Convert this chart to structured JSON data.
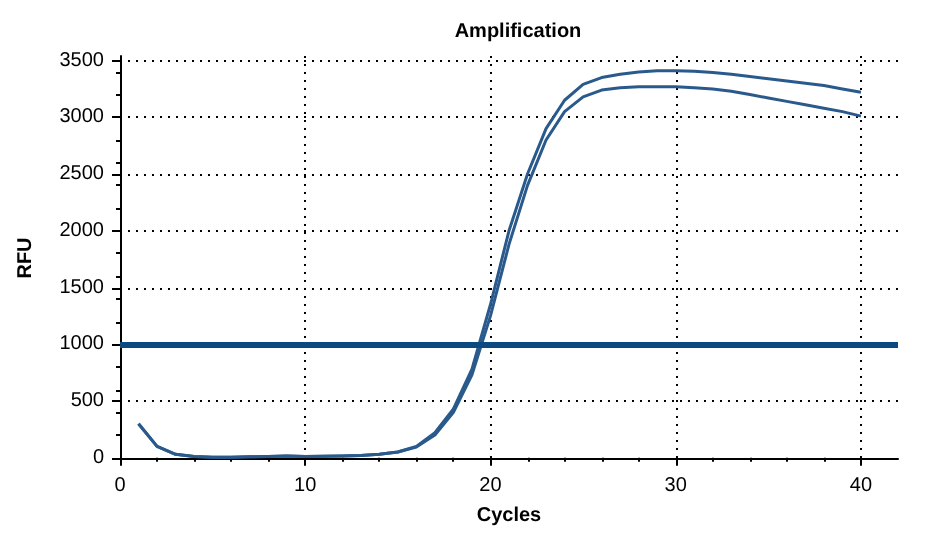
{
  "chart_data": {
    "type": "line",
    "title": "Amplification",
    "xlabel": "Cycles",
    "ylabel": "RFU",
    "x": [
      1,
      2,
      3,
      4,
      5,
      6,
      7,
      8,
      9,
      10,
      11,
      12,
      13,
      14,
      15,
      16,
      17,
      18,
      19,
      20,
      21,
      22,
      23,
      24,
      25,
      26,
      27,
      28,
      29,
      30,
      31,
      32,
      33,
      34,
      35,
      36,
      37,
      38,
      39,
      40
    ],
    "series": [
      {
        "color": "#2a5a8c",
        "values": [
          300,
          100,
          30,
          10,
          5,
          5,
          8,
          10,
          15,
          10,
          12,
          15,
          20,
          30,
          50,
          100,
          220,
          430,
          780,
          1350,
          2000,
          2500,
          2900,
          3150,
          3290,
          3350,
          3380,
          3400,
          3410,
          3410,
          3405,
          3395,
          3380,
          3360,
          3340,
          3320,
          3300,
          3280,
          3250,
          3220
        ]
      },
      {
        "color": "#2a5a8c",
        "values": [
          300,
          100,
          30,
          10,
          5,
          5,
          8,
          10,
          15,
          10,
          12,
          15,
          20,
          30,
          50,
          95,
          200,
          400,
          730,
          1250,
          1880,
          2400,
          2800,
          3050,
          3180,
          3240,
          3260,
          3270,
          3270,
          3270,
          3260,
          3250,
          3230,
          3200,
          3170,
          3140,
          3110,
          3080,
          3050,
          3010
        ]
      }
    ],
    "xlim": [
      0,
      42
    ],
    "xticks": [
      0,
      10,
      20,
      30,
      40
    ],
    "ylim": [
      -20,
      3540
    ],
    "yticks": [
      0,
      500,
      1000,
      1500,
      2000,
      2500,
      3000,
      3500
    ],
    "ref_lines": [
      {
        "axis": "y",
        "value": 1000,
        "color": "#0a4a80"
      }
    ],
    "grid": true,
    "marker": "none",
    "line_style": "solid"
  }
}
